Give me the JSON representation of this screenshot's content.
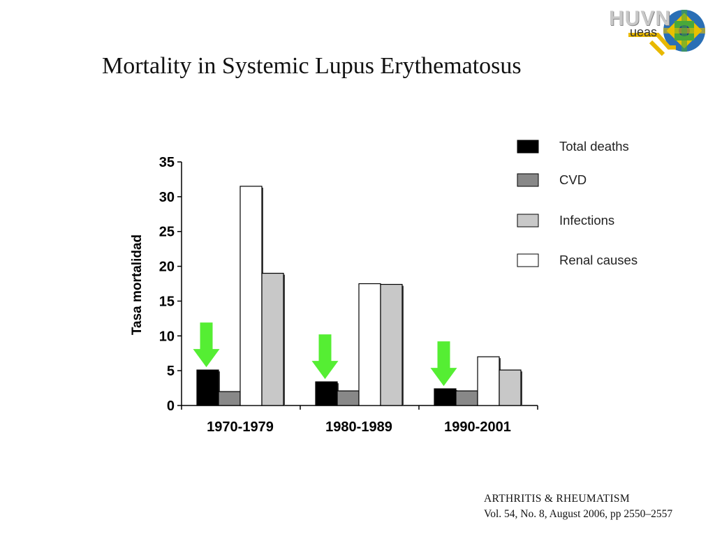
{
  "slide": {
    "title": "Mortality in Systemic Lupus Erythematosus",
    "citation_journal": "ARTHRITIS & RHEUMATISM",
    "citation_ref": "Vol. 54, No. 8, August 2006, pp 2550–2557"
  },
  "logo": {
    "text": "HUVN",
    "subtext": "ueas"
  },
  "chart_data": {
    "type": "bar",
    "title": "",
    "ylabel": "Tasa mortalidad",
    "xlabel": "",
    "ylim": [
      0,
      35
    ],
    "yticks": [
      0,
      5,
      10,
      15,
      20,
      25,
      30,
      35
    ],
    "grid": false,
    "legend_position": "top-right",
    "categories": [
      "1970-1979",
      "1980-1989",
      "1990-2001"
    ],
    "series": [
      {
        "name": "Total deaths",
        "color": "#000000",
        "values": [
          5.1,
          3.4,
          2.4
        ]
      },
      {
        "name": "CVD",
        "color": "#888888",
        "values": [
          2.0,
          2.1,
          2.1
        ]
      },
      {
        "name": "Renal causes",
        "color": "#ffffff",
        "values": [
          31.5,
          17.5,
          7.0
        ]
      },
      {
        "name": "Infections",
        "color": "#c8c8c8",
        "values": [
          19.0,
          17.4,
          5.1
        ]
      }
    ],
    "legend_order": [
      "Total deaths",
      "CVD",
      "Infections",
      "Renal causes"
    ],
    "annotations": [
      {
        "type": "arrow",
        "color": "#55ee33",
        "target_category": "1970-1979",
        "target_series": "Total deaths"
      },
      {
        "type": "arrow",
        "color": "#55ee33",
        "target_category": "1980-1989",
        "target_series": "Total deaths"
      },
      {
        "type": "arrow",
        "color": "#55ee33",
        "target_category": "1990-2001",
        "target_series": "Total deaths"
      }
    ]
  }
}
